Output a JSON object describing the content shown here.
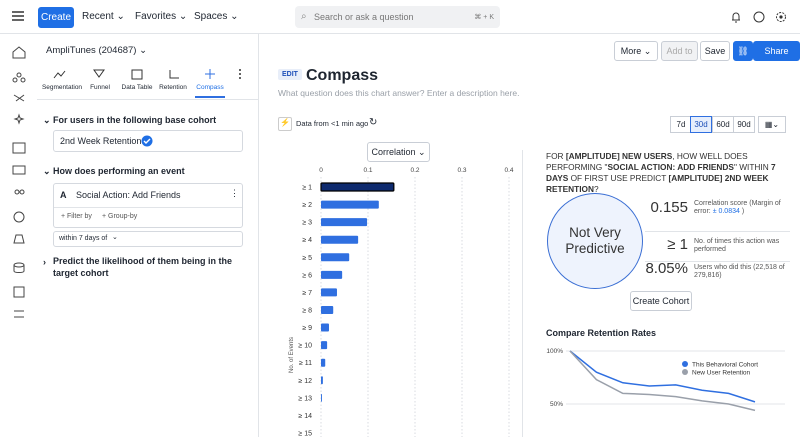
{
  "top_nav": {
    "create": "Create",
    "menus": [
      "Recent",
      "Favorites",
      "Spaces"
    ],
    "search_placeholder": "Search or ask a question",
    "search_shortcut": "⌘ + K"
  },
  "sidebar": {
    "project": "AmpliTunes (204687)",
    "tabs": [
      "Segmentation",
      "Funnel",
      "Data Table",
      "Retention",
      "Compass"
    ],
    "active_tab": 4,
    "base_cohort_heading": "For users in the following base cohort",
    "base_cohort": "2nd Week Retention",
    "event_heading": "How does performing an event",
    "event_letter": "A",
    "event_name": "Social Action: Add Friends",
    "filter_by": "+ Filter by",
    "group_by": "+ Group-by",
    "time_window": "within 7 days of",
    "predict_heading": "Predict the likelihood of them being in the target cohort"
  },
  "toolbar": {
    "buttons": [
      "More",
      "Add to",
      "Save",
      "Share"
    ]
  },
  "header": {
    "badge": "EDIT",
    "title": "Compass",
    "description": "What question does this chart answer? Enter a description here."
  },
  "data_status": "Data from <1 min ago",
  "ranges": [
    "7d",
    "30d",
    "60d",
    "90d"
  ],
  "active_range": 1,
  "correlation_chart": {
    "type": "bar",
    "metric": "Correlation",
    "y_label": "No. of Events",
    "categories": [
      "≥ 1",
      "≥ 2",
      "≥ 3",
      "≥ 4",
      "≥ 5",
      "≥ 6",
      "≥ 7",
      "≥ 8",
      "≥ 9",
      "≥ 10",
      "≥ 11",
      "≥ 12",
      "≥ 13",
      "≥ 14",
      "≥ 15"
    ],
    "values": [
      0.155,
      0.123,
      0.098,
      0.079,
      0.06,
      0.045,
      0.034,
      0.026,
      0.017,
      0.013,
      0.009,
      0.004,
      0.002,
      0,
      0
    ],
    "color": "#2f6fe0",
    "selected": 0,
    "selected_color": "#0e2a6e",
    "xlim": [
      0,
      0.4
    ],
    "xticks": [
      0,
      0.1,
      0.2,
      0.3,
      0.4
    ],
    "grid": true
  },
  "summary": {
    "question": [
      "FOR ",
      "[AMPLITUDE] NEW USERS",
      ", HOW WELL DOES PERFORMING \"",
      "SOCIAL ACTION: ADD FRIENDS",
      "\" WITHIN ",
      "7 DAYS",
      " OF FIRST USE PREDICT ",
      "[AMPLITUDE] 2ND WEEK RETENTION",
      "?"
    ],
    "verdict": "Not Very Predictive",
    "stats": [
      {
        "value": "0.155",
        "label": "Correlation score (Margin of error:",
        "detail": "± 0.0834",
        "suffix": ")"
      },
      {
        "value": "≥ 1",
        "label": "No. of times this action was performed"
      },
      {
        "value": "8.05%",
        "label": "Users who did this (22,518 of 279,816)"
      }
    ],
    "cta": "Create Cohort"
  },
  "retention_chart": {
    "type": "line",
    "title": "Compare Retention Rates",
    "categories": [
      null,
      null,
      null,
      null,
      null,
      null,
      null,
      null
    ],
    "series": [
      {
        "name": "This Behavioral Cohort",
        "color": "#2f6fe0",
        "values": [
          100,
          80,
          70,
          67,
          68,
          63,
          60,
          52
        ]
      },
      {
        "name": "New User Retention",
        "color": "#9aa0aa",
        "values": [
          100,
          73,
          60,
          59,
          57,
          53,
          50,
          44
        ]
      }
    ],
    "ylim": [
      40,
      100
    ],
    "yticks": [
      {
        "value": 100,
        "label": "100%"
      },
      {
        "value": 50,
        "label": "50%"
      }
    ],
    "grid": true
  }
}
